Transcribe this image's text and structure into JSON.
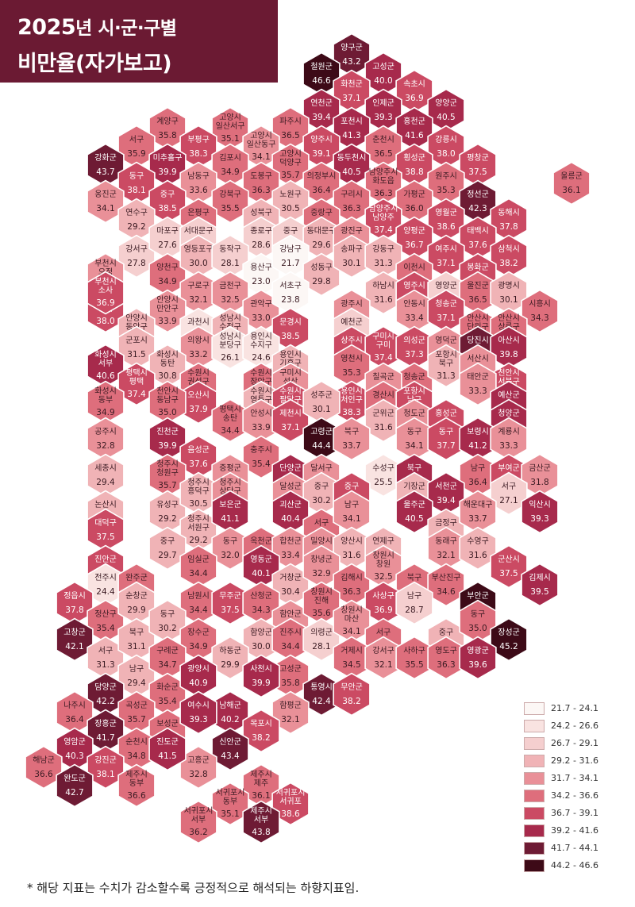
{
  "title": {
    "line1_a": "2025",
    "line1_b": "년 시·군·구별",
    "line2": "비만율(자가보고)"
  },
  "footnote": "* 해당 지표는 수치가 감소할수록 긍정적으로 해석되는 하향지표임.",
  "legend": [
    {
      "range": "21.7 - 24.1",
      "color": "#fcf7f5"
    },
    {
      "range": "24.2 - 26.6",
      "color": "#f9e3e1"
    },
    {
      "range": "26.7 - 29.1",
      "color": "#f5cfcf"
    },
    {
      "range": "29.2 - 31.6",
      "color": "#f0b3b6"
    },
    {
      "range": "31.7 - 34.1",
      "color": "#e99098"
    },
    {
      "range": "34.2 - 36.6",
      "color": "#de6e7c"
    },
    {
      "range": "36.7 - 39.1",
      "color": "#cb4a63"
    },
    {
      "range": "39.2 - 41.6",
      "color": "#a72a4c"
    },
    {
      "range": "41.7 - 44.1",
      "color": "#6e1b34"
    },
    {
      "range": "44.2 - 46.6",
      "color": "#3d0a17"
    }
  ],
  "regions": [
    {
      "label": "양구군",
      "value": "43.2"
    },
    {
      "label": "철원군",
      "value": "46.6"
    },
    {
      "label": "고성군",
      "value": "40.0"
    },
    {
      "label": "화천군",
      "value": "37.1"
    },
    {
      "label": "속초시",
      "value": "36.9"
    },
    {
      "label": "연천군",
      "value": "39.4"
    },
    {
      "label": "인제군",
      "value": "39.3"
    },
    {
      "label": "양양군",
      "value": "40.5"
    },
    {
      "label": "계양구",
      "value": "35.8"
    },
    {
      "label": "고양시 일산서구",
      "value": "35.1"
    },
    {
      "label": "파주시",
      "value": "36.5"
    },
    {
      "label": "포천시",
      "value": "41.3"
    },
    {
      "label": "홍천군",
      "value": "41.6"
    },
    {
      "label": "서구",
      "value": "35.9"
    },
    {
      "label": "부평구",
      "value": "38.3"
    },
    {
      "label": "고양시 일산동구",
      "value": "34.1"
    },
    {
      "label": "양주시",
      "value": "39.1"
    },
    {
      "label": "춘천시",
      "value": "36.5"
    },
    {
      "label": "강릉시",
      "value": "38.0"
    },
    {
      "label": "강화군",
      "value": "43.7"
    },
    {
      "label": "미추홀구",
      "value": "39.9"
    },
    {
      "label": "김포시",
      "value": "34.9"
    },
    {
      "label": "고양시 덕양구",
      "value": "35.7"
    },
    {
      "label": "동두천시",
      "value": "40.5"
    },
    {
      "label": "횡성군",
      "value": "38.8"
    },
    {
      "label": "평창군",
      "value": "37.5"
    },
    {
      "label": "동구",
      "value": "38.1"
    },
    {
      "label": "남동구",
      "value": "33.6"
    },
    {
      "label": "도봉구",
      "value": "36.3"
    },
    {
      "label": "의정부시",
      "value": "36.4"
    },
    {
      "label": "남양주시 화도읍",
      "value": "36.3"
    },
    {
      "label": "원주시",
      "value": "35.3"
    },
    {
      "label": "울릉군",
      "value": "36.1"
    },
    {
      "label": "옹진군",
      "value": "34.1"
    },
    {
      "label": "중구",
      "value": "38.5"
    },
    {
      "label": "강북구",
      "value": "35.5"
    },
    {
      "label": "노원구",
      "value": "30.5"
    },
    {
      "label": "구리시",
      "value": "36.3"
    },
    {
      "label": "가평군",
      "value": "36.0"
    },
    {
      "label": "정선군",
      "value": "42.3"
    },
    {
      "label": "연수구",
      "value": "29.2"
    },
    {
      "label": "은평구",
      "value": "35.5"
    },
    {
      "label": "성북구",
      "value": "31.0"
    },
    {
      "label": "중랑구",
      "value": "34.2"
    },
    {
      "label": "남양주시 남양주",
      "value": "37.4"
    },
    {
      "label": "영월군",
      "value": "38.6"
    },
    {
      "label": "동해시",
      "value": "37.8"
    },
    {
      "label": "강서구",
      "value": "27.8"
    },
    {
      "label": "마포구",
      "value": "27.6"
    },
    {
      "label": "서대문구",
      "value": "28.8"
    },
    {
      "label": "종로구",
      "value": "28.6"
    },
    {
      "label": "중구",
      "value": "26.9"
    },
    {
      "label": "동대문구",
      "value": "29.6"
    },
    {
      "label": "광진구",
      "value": "32.0"
    },
    {
      "label": "양평군",
      "value": "36.7"
    },
    {
      "label": "태백시",
      "value": "37.6"
    },
    {
      "label": "삼척시",
      "value": "38.2"
    },
    {
      "label": "부천시 오정",
      "value": "32.3"
    },
    {
      "label": "양천구",
      "value": "34.9"
    },
    {
      "label": "영등포구",
      "value": "30.0"
    },
    {
      "label": "동작구",
      "value": "28.1"
    },
    {
      "label": "용산구",
      "value": "23.0"
    },
    {
      "label": "강남구",
      "value": "21.7"
    },
    {
      "label": "성동구",
      "value": "29.8"
    },
    {
      "label": "송파구",
      "value": "30.1"
    },
    {
      "label": "강동구",
      "value": "31.3"
    },
    {
      "label": "여주시",
      "value": "37.1"
    },
    {
      "label": "이천시",
      "value": "34.9"
    },
    {
      "label": "봉화군",
      "value": "39.1"
    },
    {
      "label": "부천시 원미",
      "value": "38.0"
    },
    {
      "label": "부천시 소사",
      "value": "36.9"
    },
    {
      "label": "구로구",
      "value": "32.1"
    },
    {
      "label": "금천구",
      "value": "32.5"
    },
    {
      "label": "관악구",
      "value": "33.0"
    },
    {
      "label": "서초구",
      "value": "23.8"
    },
    {
      "label": "하남시",
      "value": "31.6"
    },
    {
      "label": "광주시",
      "value": "31.8"
    },
    {
      "label": "영주시",
      "value": "38.5"
    },
    {
      "label": "영양군",
      "value": "28.0"
    },
    {
      "label": "울진군",
      "value": "36.5"
    },
    {
      "label": "광명시",
      "value": "30.1"
    },
    {
      "label": "시흥시",
      "value": "34.3"
    },
    {
      "label": "안양시 만안구",
      "value": "33.9"
    },
    {
      "label": "안양시 동안구",
      "value": "30.7"
    },
    {
      "label": "과천시",
      "value": "25.2"
    },
    {
      "label": "성남시 수정구",
      "value": "30.3"
    },
    {
      "label": "문경시",
      "value": "38.5"
    },
    {
      "label": "예천군",
      "value": "28.7"
    },
    {
      "label": "안동시",
      "value": "33.4"
    },
    {
      "label": "청송군",
      "value": "37.1"
    },
    {
      "label": "안산시 단원구",
      "value": "36.2"
    },
    {
      "label": "안산시 상록구",
      "value": "36.4"
    },
    {
      "label": "군포시",
      "value": "31.5"
    },
    {
      "label": "의왕시",
      "value": "33.2"
    },
    {
      "label": "성남시 분당구",
      "value": "26.1"
    },
    {
      "label": "용인시 수지구",
      "value": "24.6"
    },
    {
      "label": "상주시",
      "value": "38.6"
    },
    {
      "label": "구미시 구미",
      "value": "37.4"
    },
    {
      "label": "의성군",
      "value": "37.3"
    },
    {
      "label": "영덕군",
      "value": "33.8"
    },
    {
      "label": "당진시",
      "value": "41.7"
    },
    {
      "label": "아산시",
      "value": "39.8"
    },
    {
      "label": "화성시 서부",
      "value": "40.6"
    },
    {
      "label": "화성시 동탄",
      "value": "30.8"
    },
    {
      "label": "수원시 권선구",
      "value": "35.2"
    },
    {
      "label": "수원시 장안구",
      "value": "35.8"
    },
    {
      "label": "용인시 기흥구",
      "value": "30.9"
    },
    {
      "label": "구미시 선산",
      "value": "31.9"
    },
    {
      "label": "영천시",
      "value": "35.3"
    },
    {
      "label": "청송군",
      "value": "34.3"
    },
    {
      "label": "포항시 북구",
      "value": "31.3"
    },
    {
      "label": "서산시",
      "value": "33.4"
    },
    {
      "label": "천안시 서북구",
      "value": "38.9"
    },
    {
      "label": "평택시 평택",
      "value": "37.4"
    },
    {
      "label": "오산시",
      "value": "37.9"
    },
    {
      "label": "수원시 영통구",
      "value": "29.7"
    },
    {
      "label": "수원시 팔달구",
      "value": "38.5"
    },
    {
      "label": "용인시 처인구",
      "value": "38.3"
    },
    {
      "label": "칠곡군",
      "value": "33.5"
    },
    {
      "label": "경산시",
      "value": "34.5"
    },
    {
      "label": "포항시 남구",
      "value": "37.0"
    },
    {
      "label": "태안군",
      "value": "33.3"
    },
    {
      "label": "예산군",
      "value": "39.6"
    },
    {
      "label": "화성시 동부",
      "value": "34.9"
    },
    {
      "label": "천안시 동남구",
      "value": "35.0"
    },
    {
      "label": "평택시 송탄",
      "value": "34.4"
    },
    {
      "label": "안성시",
      "value": "33.9"
    },
    {
      "label": "제천시",
      "value": "37.1"
    },
    {
      "label": "성주군",
      "value": "30.1"
    },
    {
      "label": "군위군",
      "value": "31.6"
    },
    {
      "label": "청도군",
      "value": "33.5"
    },
    {
      "label": "홍성군",
      "value": "36.9"
    },
    {
      "label": "청양군",
      "value": "41.6"
    },
    {
      "label": "공주시",
      "value": "32.8"
    },
    {
      "label": "진천군",
      "value": "39.9"
    },
    {
      "label": "음성군",
      "value": "37.6"
    },
    {
      "label": "충주시",
      "value": "35.4"
    },
    {
      "label": "고령군",
      "value": "44.4"
    },
    {
      "label": "북구",
      "value": "33.7"
    },
    {
      "label": "동구",
      "value": "34.1"
    },
    {
      "label": "동구",
      "value": "37.7"
    },
    {
      "label": "보령시",
      "value": "41.2"
    },
    {
      "label": "계룡시",
      "value": "33.3"
    },
    {
      "label": "세종시",
      "value": "29.4"
    },
    {
      "label": "청주시 청원구",
      "value": "35.7"
    },
    {
      "label": "증평군",
      "value": "33.9"
    },
    {
      "label": "단양군",
      "value": "40.5"
    },
    {
      "label": "달서구",
      "value": "34.0"
    },
    {
      "label": "수성구",
      "value": "25.5"
    },
    {
      "label": "북구",
      "value": "39.6"
    },
    {
      "label": "남구",
      "value": "36.4"
    },
    {
      "label": "부여군",
      "value": "38.5"
    },
    {
      "label": "금산군",
      "value": "31.8"
    },
    {
      "label": "논산시",
      "value": "29.4"
    },
    {
      "label": "유성구",
      "value": "29.2"
    },
    {
      "label": "청주시 흥덕구",
      "value": "30.5"
    },
    {
      "label": "청주시 상당구",
      "value": "34.0"
    },
    {
      "label": "달성군",
      "value": "32.8"
    },
    {
      "label": "중구",
      "value": "30.2"
    },
    {
      "label": "중구",
      "value": "37.6"
    },
    {
      "label": "기장군",
      "value": "31.2"
    },
    {
      "label": "서천군",
      "value": "39.4"
    },
    {
      "label": "서구",
      "value": "27.1"
    },
    {
      "label": "대덕구",
      "value": "37.5"
    },
    {
      "label": "청주시 서원구",
      "value": "29.2"
    },
    {
      "label": "보은군",
      "value": "41.1"
    },
    {
      "label": "괴산군",
      "value": "40.4"
    },
    {
      "label": "서구",
      "value": "36.0"
    },
    {
      "label": "남구",
      "value": "34.1"
    },
    {
      "label": "울주군",
      "value": "40.5"
    },
    {
      "label": "금정구",
      "value": "31.1"
    },
    {
      "label": "해운대구",
      "value": "33.7"
    },
    {
      "label": "익산시",
      "value": "39.3"
    },
    {
      "label": "진안군",
      "value": "37.1"
    },
    {
      "label": "중구",
      "value": "29.7"
    },
    {
      "label": "동구",
      "value": "32.0"
    },
    {
      "label": "옥천군",
      "value": "35.7"
    },
    {
      "label": "합천군",
      "value": "33.4"
    },
    {
      "label": "밀양시",
      "value": "32.6"
    },
    {
      "label": "양산시",
      "value": "31.6"
    },
    {
      "label": "연제구",
      "value": "31.5"
    },
    {
      "label": "동래구",
      "value": "32.1"
    },
    {
      "label": "수영구",
      "value": "31.6"
    },
    {
      "label": "군산시",
      "value": "37.5"
    },
    {
      "label": "전주시",
      "value": "24.4"
    },
    {
      "label": "완주군",
      "value": "35.7"
    },
    {
      "label": "임실군",
      "value": "34.4"
    },
    {
      "label": "영동군",
      "value": "40.1"
    },
    {
      "label": "거창군",
      "value": "30.4"
    },
    {
      "label": "창녕군",
      "value": "32.9"
    },
    {
      "label": "김해시",
      "value": "36.3"
    },
    {
      "label": "창원시 창원",
      "value": "32.5"
    },
    {
      "label": "북구",
      "value": "34.8"
    },
    {
      "label": "부산진구",
      "value": "34.6"
    },
    {
      "label": "김제시",
      "value": "39.5"
    },
    {
      "label": "정읍시",
      "value": "37.8"
    },
    {
      "label": "정산구",
      "value": "35.4"
    },
    {
      "label": "순창군",
      "value": "29.9"
    },
    {
      "label": "남원시",
      "value": "34.4"
    },
    {
      "label": "무주군",
      "value": "37.5"
    },
    {
      "label": "산청군",
      "value": "34.3"
    },
    {
      "label": "함안군",
      "value": "33.9"
    },
    {
      "label": "창원시 진해",
      "value": "35.6"
    },
    {
      "label": "사상구",
      "value": "36.9"
    },
    {
      "label": "남구",
      "value": "28.7"
    },
    {
      "label": "부안군",
      "value": "44.8"
    },
    {
      "label": "고창군",
      "value": "42.1"
    },
    {
      "label": "서구",
      "value": "31.3"
    },
    {
      "label": "북구",
      "value": "31.1"
    },
    {
      "label": "동구",
      "value": "30.2"
    },
    {
      "label": "장수군",
      "value": "34.9"
    },
    {
      "label": "함양군",
      "value": "30.0"
    },
    {
      "label": "진주시",
      "value": "34.4"
    },
    {
      "label": "의령군",
      "value": "28.1"
    },
    {
      "label": "창원시 마산",
      "value": "34.1"
    },
    {
      "label": "서구",
      "value": "36.2"
    },
    {
      "label": "중구",
      "value": "29.9"
    },
    {
      "label": "동구",
      "value": "35.0"
    },
    {
      "label": "장성군",
      "value": "45.2"
    },
    {
      "label": "남구",
      "value": "29.4"
    },
    {
      "label": "구례군",
      "value": "34.7"
    },
    {
      "label": "하동군",
      "value": "29.9"
    },
    {
      "label": "고성군",
      "value": "35.8"
    },
    {
      "label": "거제시",
      "value": "34.5"
    },
    {
      "label": "강서구",
      "value": "32.1"
    },
    {
      "label": "사하구",
      "value": "35.5"
    },
    {
      "label": "영도구",
      "value": "36.3"
    },
    {
      "label": "영광군",
      "value": "39.6"
    },
    {
      "label": "담양군",
      "value": "42.2"
    },
    {
      "label": "화순군",
      "value": "35.4"
    },
    {
      "label": "광양시",
      "value": "40.9"
    },
    {
      "label": "사천시",
      "value": "39.9"
    },
    {
      "label": "통영시",
      "value": "42.4"
    },
    {
      "label": "무안군",
      "value": "38.2"
    },
    {
      "label": "나주시",
      "value": "36.4"
    },
    {
      "label": "곡성군",
      "value": "35.7"
    },
    {
      "label": "남해군",
      "value": "40.2"
    },
    {
      "label": "함평군",
      "value": "32.1"
    },
    {
      "label": "장흥군",
      "value": "41.7"
    },
    {
      "label": "보성군",
      "value": "35.2"
    },
    {
      "label": "여수시",
      "value": "39.3"
    },
    {
      "label": "목포시",
      "value": "38.2"
    },
    {
      "label": "영암군",
      "value": "40.3"
    },
    {
      "label": "순천시",
      "value": "34.8"
    },
    {
      "label": "신안군",
      "value": "43.4"
    },
    {
      "label": "해남군",
      "value": "36.6"
    },
    {
      "label": "강진군",
      "value": "38.1"
    },
    {
      "label": "고흥군",
      "value": "32.8"
    },
    {
      "label": "진도군",
      "value": "41.5"
    },
    {
      "label": "완도군",
      "value": "42.7"
    },
    {
      "label": "제주시 동부",
      "value": "36.6"
    },
    {
      "label": "제주시 제주",
      "value": "36.1"
    },
    {
      "label": "서귀포시 동부",
      "value": "35.1"
    },
    {
      "label": "서귀포시 서귀포",
      "value": "38.6"
    },
    {
      "label": "제주시 서부",
      "value": "43.8"
    },
    {
      "label": "서귀포시 서부",
      "value": "36.2"
    }
  ]
}
